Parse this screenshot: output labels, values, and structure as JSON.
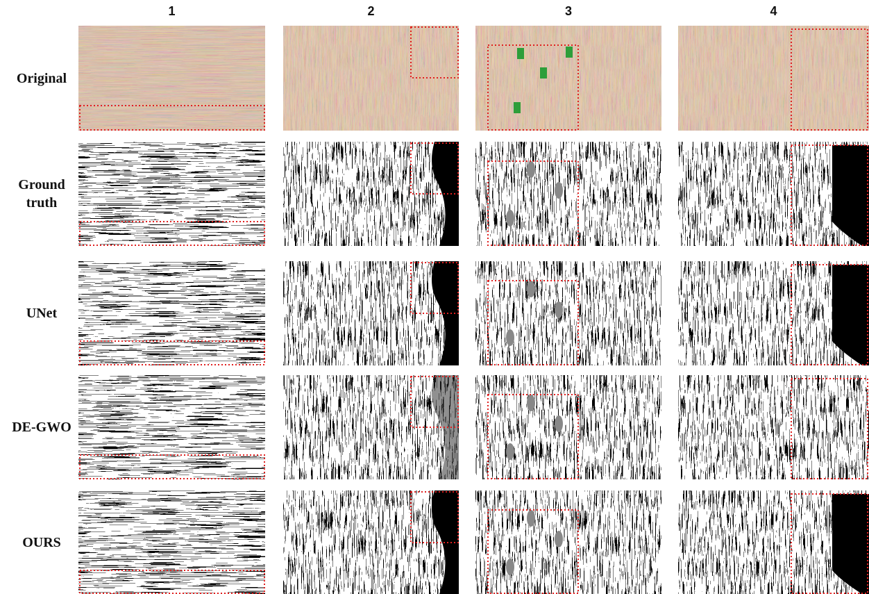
{
  "figure": {
    "columns": [
      "1",
      "2",
      "3",
      "4"
    ],
    "rows": [
      "Original",
      "Ground truth",
      "UNet",
      "DE-GWO",
      "OURS"
    ]
  }
}
